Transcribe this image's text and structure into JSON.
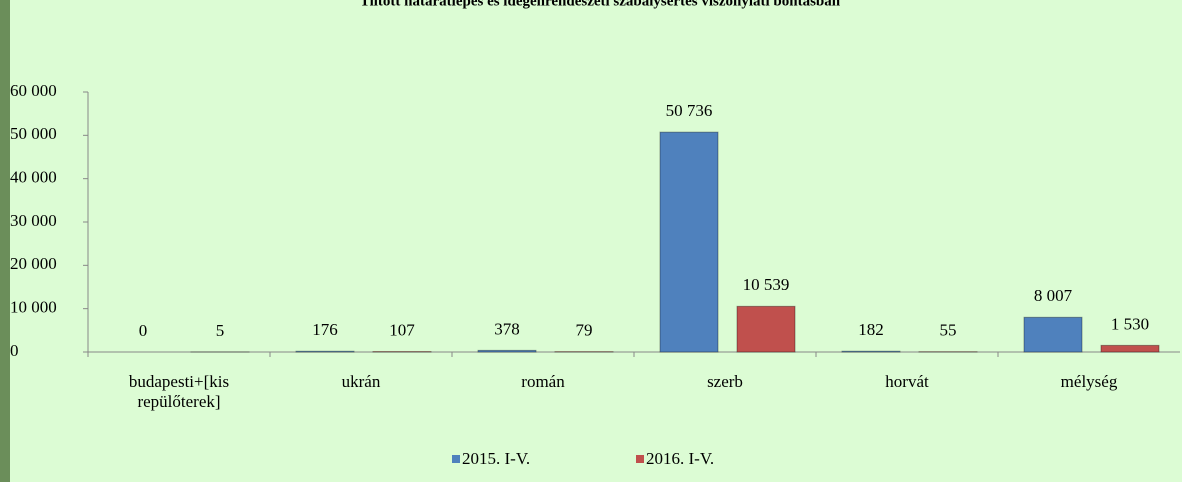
{
  "chart_data": {
    "type": "bar",
    "title": "Tiltott határátlépés és idegenrendészeti szabálysértés viszonylati bontásban",
    "categories": [
      "budapesti+[kis repülőterek]",
      "ukrán",
      "román",
      "szerb",
      "horvát",
      "mélység"
    ],
    "series": [
      {
        "name": "2015. I-V.",
        "color": "#4f81bd",
        "values": [
          0,
          176,
          378,
          50736,
          182,
          8007
        ],
        "value_labels": [
          "0",
          "176",
          "378",
          "50 736",
          "182",
          "8 007"
        ]
      },
      {
        "name": "2016. I-V.",
        "color": "#c0504d",
        "values": [
          5,
          107,
          79,
          10539,
          55,
          1530
        ],
        "value_labels": [
          "5",
          "107",
          "79",
          "10 539",
          "55",
          "1 530"
        ]
      }
    ],
    "ylim": [
      0,
      60000
    ],
    "yticks": [
      0,
      {
        "value": 10000,
        "label": "10 000"
      },
      {
        "value": 20000,
        "label": "20 000"
      },
      {
        "value": 30000,
        "label": "30 000"
      },
      {
        "value": 40000,
        "label": "40 000"
      },
      {
        "value": 50000,
        "label": "50 000"
      },
      {
        "value": 60000,
        "label": "60 000"
      }
    ],
    "legend": "bottom"
  }
}
